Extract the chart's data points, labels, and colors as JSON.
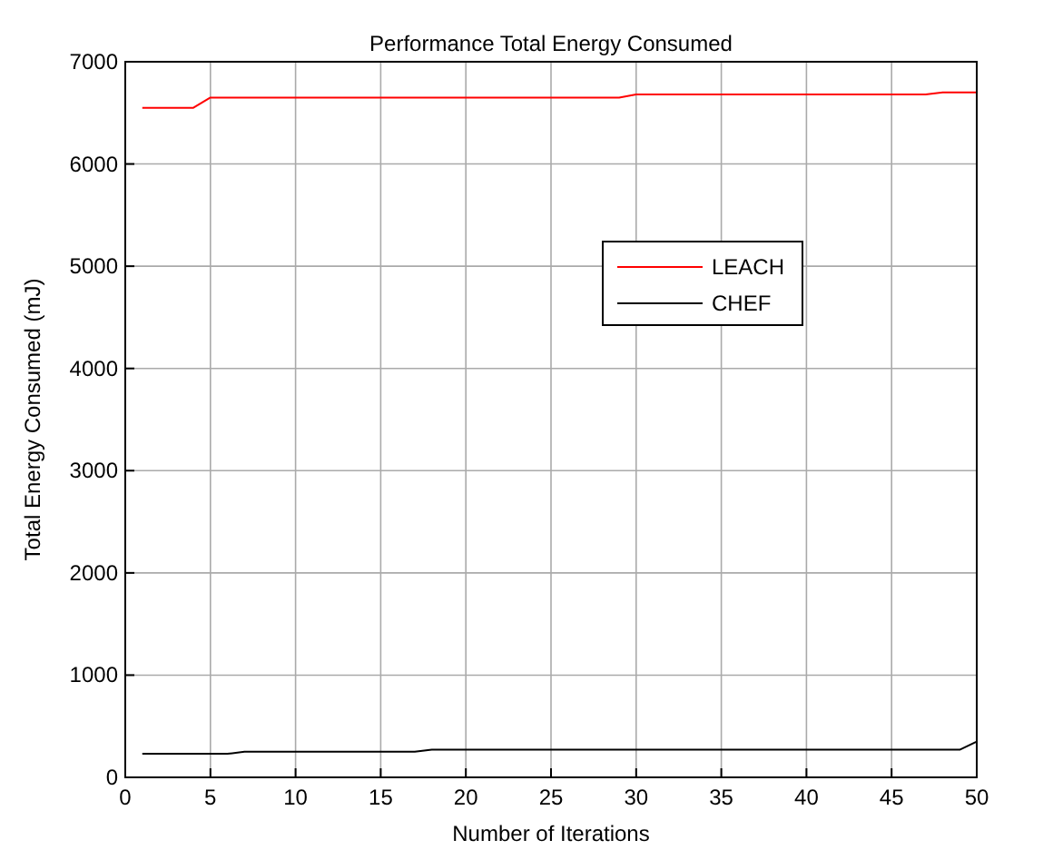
{
  "chart_data": {
    "type": "line",
    "title": "Performance Total Energy Consumed",
    "xlabel": "Number of Iterations",
    "ylabel": "Total Energy Consumed (mJ)",
    "series": [
      {
        "name": "LEACH",
        "color": "#ff0000",
        "x": [
          1,
          4,
          5,
          29,
          30,
          47,
          48,
          50
        ],
        "values": [
          6550,
          6550,
          6650,
          6650,
          6680,
          6680,
          6700,
          6700
        ]
      },
      {
        "name": "CHEF",
        "color": "#000000",
        "x": [
          1,
          6,
          7,
          17,
          18,
          49,
          50
        ],
        "values": [
          230,
          230,
          250,
          250,
          270,
          270,
          350
        ]
      }
    ],
    "xlim": [
      0,
      50
    ],
    "xticks": [
      0,
      5,
      10,
      15,
      20,
      25,
      30,
      35,
      40,
      45,
      50
    ],
    "ylim": [
      0,
      7000
    ],
    "yticks": [
      0,
      1000,
      2000,
      3000,
      4000,
      5000,
      6000,
      7000
    ],
    "grid": true,
    "legend": "top right"
  }
}
